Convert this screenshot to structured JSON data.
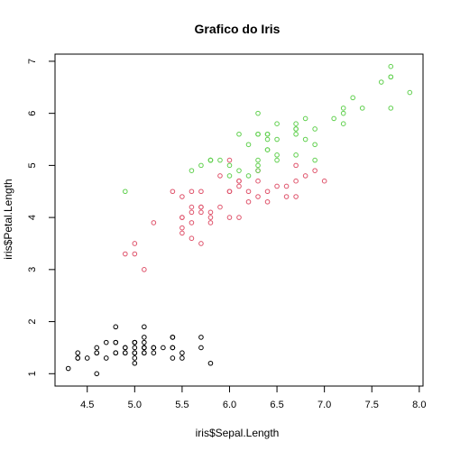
{
  "chart_data": {
    "type": "scatter",
    "title": "Grafico do Iris",
    "xlabel": "iris$Sepal.Length",
    "ylabel": "iris$Petal.Length",
    "xlim": [
      4.3,
      7.9
    ],
    "ylim": [
      1.0,
      6.9
    ],
    "x_ticks": [
      4.5,
      5.0,
      5.5,
      6.0,
      6.5,
      7.0,
      7.5,
      8.0
    ],
    "x_tick_labels": [
      "4.5",
      "5.0",
      "5.5",
      "6.0",
      "6.5",
      "7.0",
      "7.5",
      "8.0"
    ],
    "y_ticks": [
      1,
      2,
      3,
      4,
      5,
      6,
      7
    ],
    "y_tick_labels": [
      "1",
      "2",
      "3",
      "4",
      "5",
      "6",
      "7"
    ],
    "grid": false,
    "legend": "none",
    "series": [
      {
        "color": "#000000",
        "x": [
          5.1,
          4.9,
          4.7,
          4.6,
          5.0,
          5.4,
          4.6,
          5.0,
          4.4,
          4.9,
          5.4,
          4.8,
          4.8,
          4.3,
          5.8,
          5.7,
          5.4,
          5.1,
          5.7,
          5.1,
          5.4,
          5.1,
          4.6,
          5.1,
          4.8,
          5.0,
          5.0,
          5.2,
          5.2,
          4.7,
          4.8,
          5.4,
          5.2,
          5.5,
          4.9,
          5.0,
          5.5,
          4.9,
          4.4,
          5.1,
          5.0,
          4.5,
          4.4,
          5.0,
          5.1,
          4.8,
          5.1,
          4.6,
          5.3,
          5.0
        ],
        "y": [
          1.4,
          1.4,
          1.3,
          1.5,
          1.4,
          1.7,
          1.4,
          1.5,
          1.4,
          1.5,
          1.5,
          1.6,
          1.4,
          1.1,
          1.2,
          1.5,
          1.3,
          1.4,
          1.7,
          1.5,
          1.7,
          1.5,
          1.0,
          1.7,
          1.9,
          1.6,
          1.6,
          1.5,
          1.4,
          1.6,
          1.6,
          1.5,
          1.5,
          1.4,
          1.5,
          1.2,
          1.3,
          1.4,
          1.3,
          1.5,
          1.3,
          1.3,
          1.3,
          1.6,
          1.9,
          1.4,
          1.6,
          1.4,
          1.5,
          1.4
        ]
      },
      {
        "color": "#DF536B",
        "x": [
          7.0,
          6.4,
          6.9,
          5.5,
          6.5,
          5.7,
          6.3,
          4.9,
          6.6,
          5.2,
          5.0,
          5.9,
          6.0,
          6.1,
          5.6,
          6.7,
          5.6,
          5.8,
          6.2,
          5.6,
          5.9,
          6.1,
          6.3,
          6.1,
          6.4,
          6.6,
          6.8,
          6.7,
          6.0,
          5.7,
          5.5,
          5.5,
          5.8,
          6.0,
          5.4,
          6.0,
          6.7,
          6.3,
          5.6,
          5.5,
          5.5,
          6.1,
          5.8,
          5.0,
          5.6,
          5.7,
          5.7,
          6.2,
          5.1,
          5.7
        ],
        "y": [
          4.7,
          4.5,
          4.9,
          4.0,
          4.6,
          4.5,
          4.7,
          3.3,
          4.6,
          3.9,
          3.5,
          4.2,
          4.0,
          4.7,
          3.6,
          4.4,
          4.5,
          4.1,
          4.5,
          3.9,
          4.8,
          4.0,
          4.9,
          4.7,
          4.3,
          4.4,
          4.8,
          5.0,
          4.5,
          3.5,
          3.8,
          3.7,
          3.9,
          5.1,
          4.5,
          4.5,
          4.7,
          4.4,
          4.1,
          4.0,
          4.4,
          4.6,
          4.0,
          3.3,
          4.2,
          4.2,
          4.2,
          4.3,
          3.0,
          4.1
        ]
      },
      {
        "color": "#61D04F",
        "x": [
          6.3,
          5.8,
          7.1,
          6.3,
          6.5,
          7.6,
          4.9,
          7.3,
          6.7,
          7.2,
          6.5,
          6.4,
          6.8,
          5.7,
          5.8,
          6.4,
          6.5,
          7.7,
          7.7,
          6.0,
          6.9,
          5.6,
          7.7,
          6.3,
          6.7,
          7.2,
          6.2,
          6.1,
          6.4,
          7.2,
          7.4,
          7.9,
          6.4,
          6.3,
          6.1,
          7.7,
          6.3,
          6.4,
          6.0,
          6.9,
          6.7,
          6.9,
          5.8,
          6.8,
          6.7,
          6.7,
          6.3,
          6.5,
          6.2,
          5.9
        ],
        "y": [
          6.0,
          5.1,
          5.9,
          5.6,
          5.8,
          6.6,
          4.5,
          6.3,
          5.8,
          6.1,
          5.1,
          5.3,
          5.5,
          5.0,
          5.1,
          5.3,
          5.5,
          6.7,
          6.9,
          5.0,
          5.7,
          4.9,
          6.7,
          4.9,
          5.7,
          6.0,
          4.8,
          4.9,
          5.6,
          5.8,
          6.1,
          6.4,
          5.6,
          5.1,
          5.6,
          6.1,
          5.6,
          5.5,
          4.8,
          5.4,
          5.6,
          5.1,
          5.1,
          5.9,
          5.7,
          5.2,
          5.0,
          5.2,
          5.4,
          5.1
        ]
      }
    ]
  }
}
